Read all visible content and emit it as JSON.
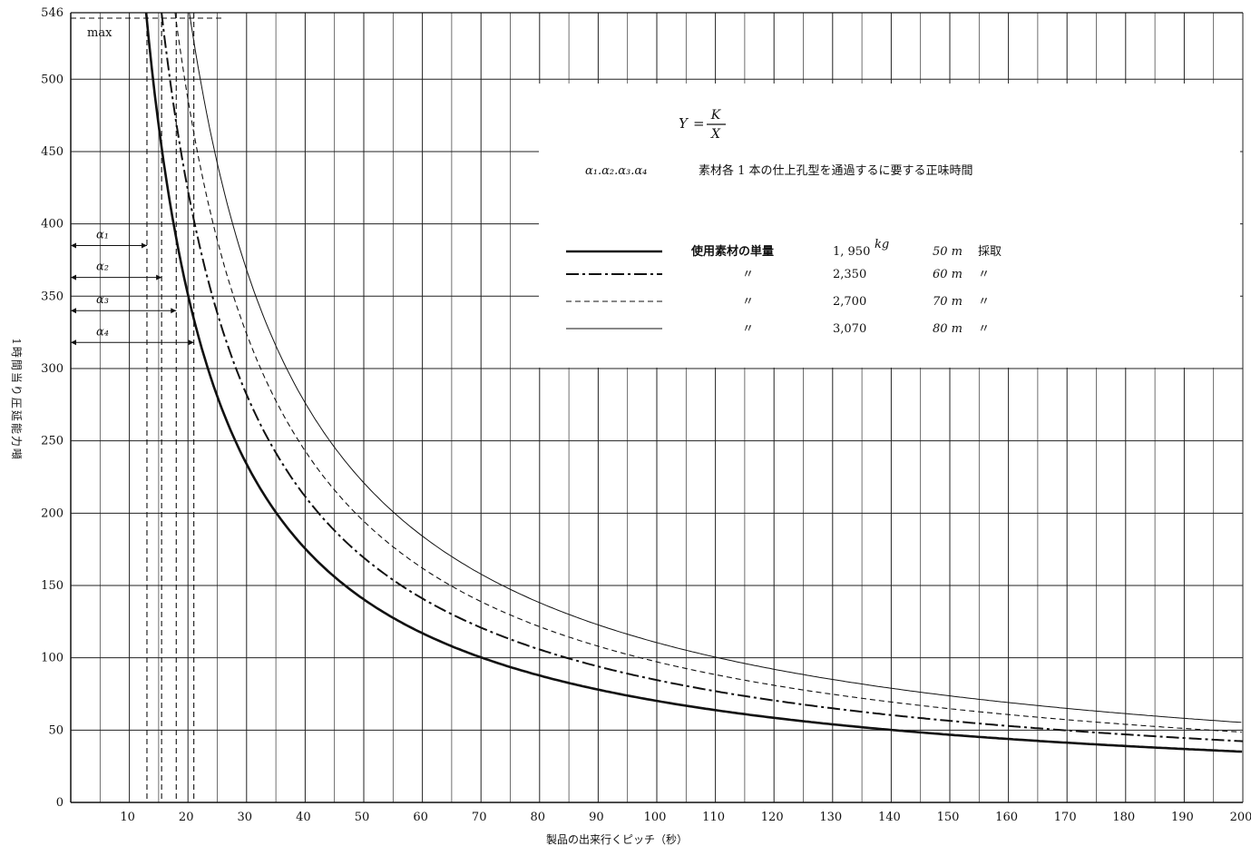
{
  "chart_data": {
    "type": "line",
    "title": "",
    "xlabel": "製品の出来行くピッチ（秒）",
    "ylabel": "1時間当り圧延能力噸",
    "xlim": [
      0,
      200
    ],
    "ylim": [
      0,
      546
    ],
    "x_ticks": [
      10,
      20,
      30,
      40,
      50,
      60,
      70,
      80,
      90,
      100,
      110,
      120,
      130,
      140,
      150,
      160,
      170,
      180,
      190,
      200
    ],
    "x_tick_labels": [
      "10",
      "20",
      "30",
      "40",
      "50",
      "60",
      "70",
      "80",
      "90",
      "100",
      "110",
      "120",
      "130",
      "140",
      "150",
      "160",
      "170",
      "180",
      "190",
      "200"
    ],
    "y_ticks": [
      0,
      50,
      100,
      150,
      200,
      250,
      300,
      350,
      400,
      450,
      500,
      546
    ],
    "y_tick_labels": [
      "0",
      "50",
      "100",
      "150",
      "200",
      "250",
      "300",
      "350",
      "400",
      "450",
      "500",
      "546"
    ],
    "grid": true,
    "formula": {
      "lhs": "Y",
      "num": "K",
      "den": "X"
    },
    "max_label": "max",
    "alpha_caption": "α₁.α₂.α₃.α₄",
    "alpha_description": "素材各 1 本の仕上孔型を通過するに要する正味時間",
    "alphas": [
      {
        "label": "α₁",
        "x": 13.0,
        "y": 385
      },
      {
        "label": "α₂",
        "x": 15.5,
        "y": 363
      },
      {
        "label": "α₃",
        "x": 18.0,
        "y": 340
      },
      {
        "label": "α₄",
        "x": 21.0,
        "y": 318
      }
    ],
    "series": [
      {
        "name": "使用素材の単量",
        "weight": "1, 950",
        "unit": "kg",
        "length": "50 m",
        "suffix": "採取",
        "k": 7020,
        "style": "solid-thick",
        "color": "#111111"
      },
      {
        "name": "〃",
        "weight": "2,350",
        "unit": "",
        "length": "60 m",
        "suffix": "〃",
        "k": 8460,
        "style": "dashdot",
        "color": "#111111"
      },
      {
        "name": "〃",
        "weight": "2,700",
        "unit": "",
        "length": "70 m",
        "suffix": "〃",
        "k": 9720,
        "style": "dashed",
        "color": "#111111"
      },
      {
        "name": "〃",
        "weight": "3,070",
        "unit": "",
        "length": "80 m",
        "suffix": "〃",
        "k": 11050,
        "style": "solid-thin",
        "color": "#111111"
      }
    ]
  }
}
